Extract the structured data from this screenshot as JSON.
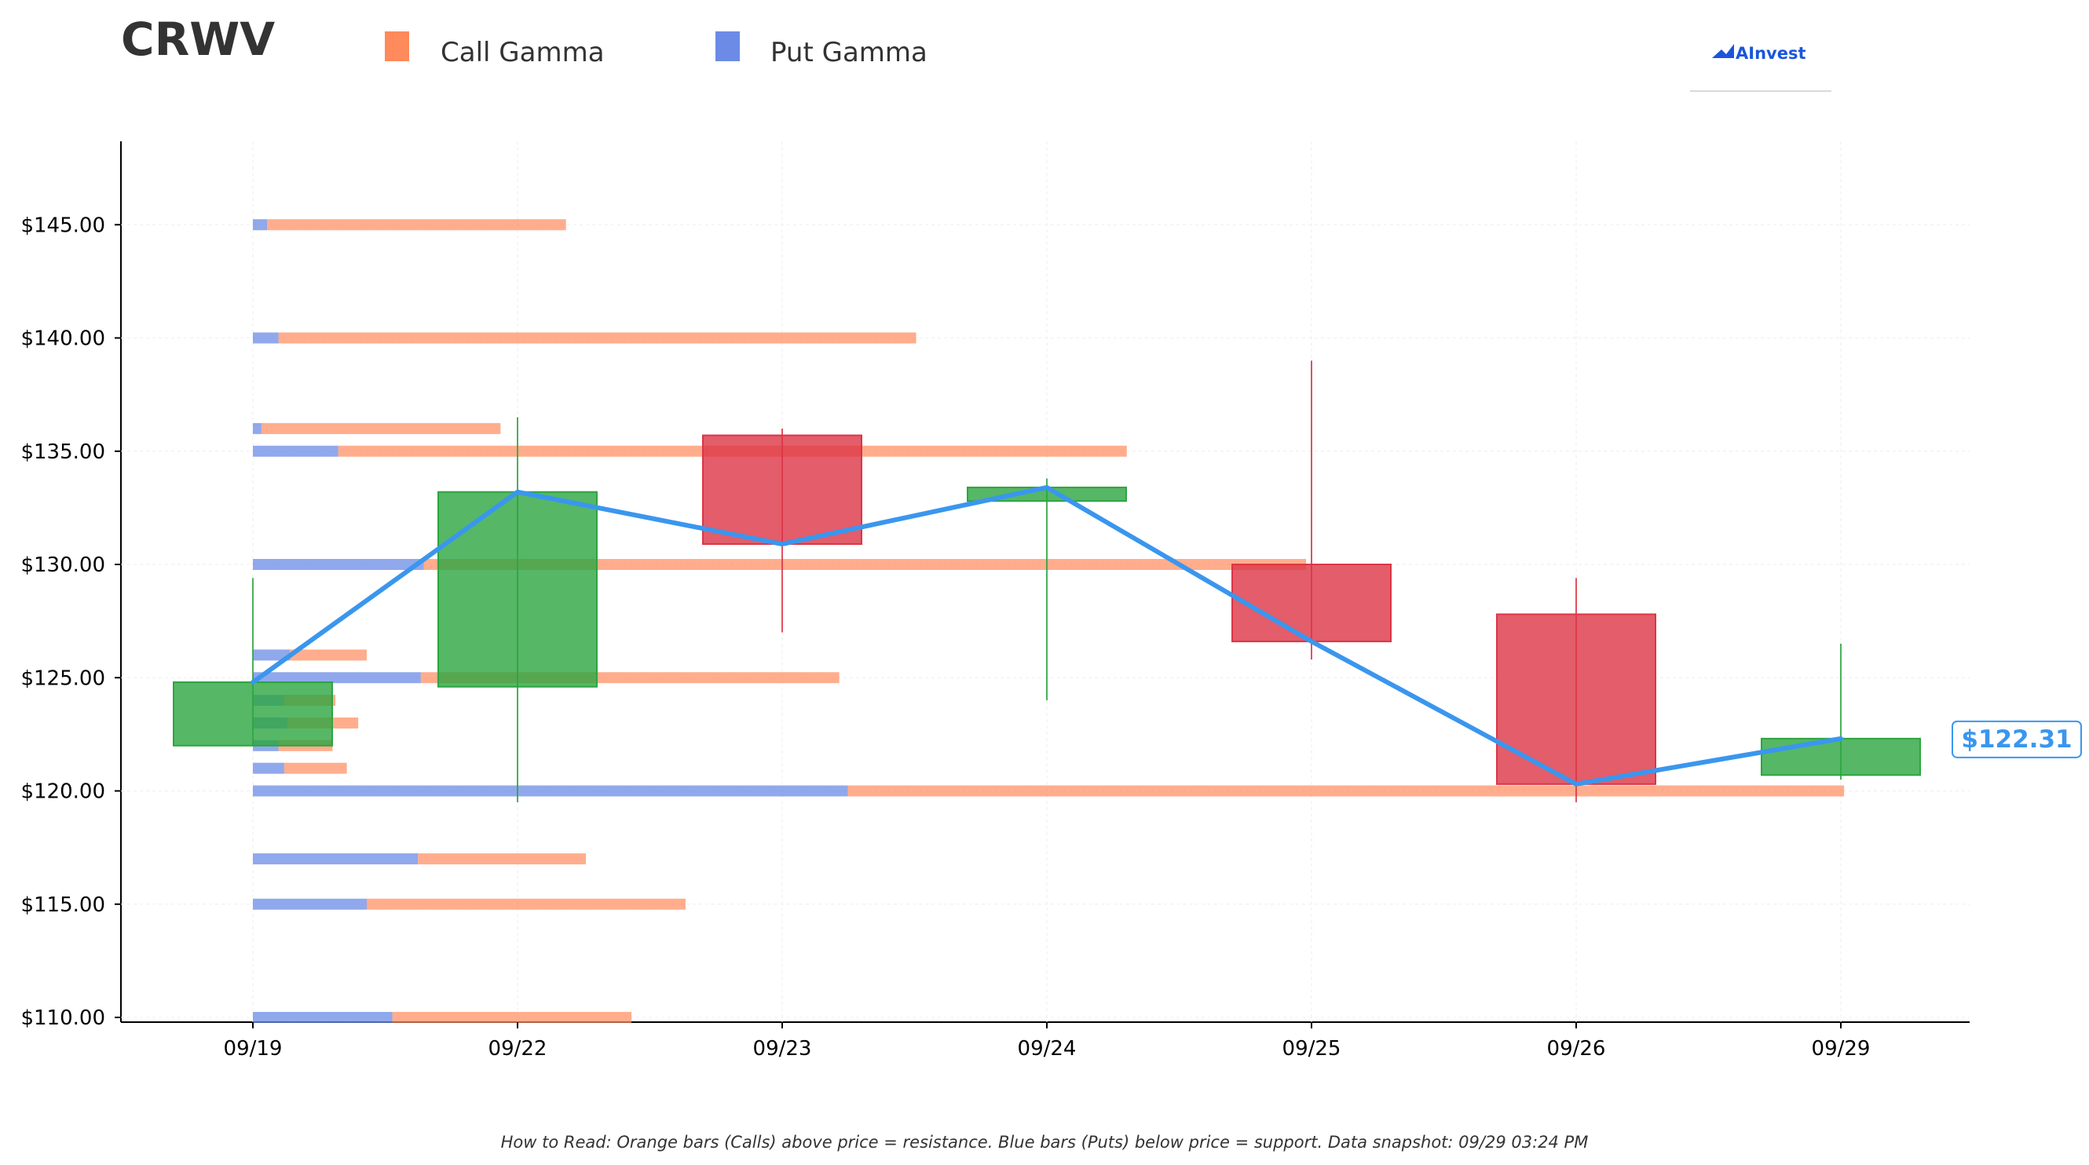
{
  "chart_data": {
    "type": "candlestick",
    "title": "CRWV",
    "brand": "AInvest",
    "footer": "How to Read: Orange bars (Calls) above price = resistance. Blue bars (Puts) below price = support. Data snapshot: 09/29 03:24 PM",
    "legend": [
      {
        "name": "Call Gamma",
        "color": "#ff8a5b"
      },
      {
        "name": "Put Gamma",
        "color": "#6b8be6"
      }
    ],
    "ylim": [
      109.8,
      149
    ],
    "yticks": [
      110,
      115,
      120,
      125,
      130,
      135,
      140,
      145
    ],
    "ytick_labels": [
      "$110.00",
      "$115.00",
      "$120.00",
      "$125.00",
      "$130.00",
      "$135.00",
      "$140.00",
      "$145.00"
    ],
    "categories": [
      "09/19",
      "09/22",
      "09/23",
      "09/24",
      "09/25",
      "09/26",
      "09/29"
    ],
    "candles": [
      {
        "date": "09/19",
        "open": 122.0,
        "high": 129.4,
        "low": 122.0,
        "close": 124.8
      },
      {
        "date": "09/22",
        "open": 124.6,
        "high": 136.5,
        "low": 119.5,
        "close": 133.2
      },
      {
        "date": "09/23",
        "open": 135.7,
        "high": 136.0,
        "low": 127.0,
        "close": 130.9
      },
      {
        "date": "09/24",
        "open": 132.8,
        "high": 133.8,
        "low": 124.0,
        "close": 133.4
      },
      {
        "date": "09/25",
        "open": 130.0,
        "high": 139.0,
        "low": 125.8,
        "close": 126.6
      },
      {
        "date": "09/26",
        "open": 127.8,
        "high": 129.4,
        "low": 119.5,
        "close": 120.3
      },
      {
        "date": "09/29",
        "open": 120.7,
        "high": 126.5,
        "low": 120.5,
        "close": 122.31
      }
    ],
    "close_line": [
      124.8,
      133.2,
      130.9,
      133.4,
      126.6,
      120.3,
      122.31
    ],
    "last_price": 122.31,
    "last_price_label": "$122.31",
    "gamma_x_max": 6.5,
    "gamma_levels": [
      {
        "strike": 145,
        "put": 0.05,
        "call": 1.05
      },
      {
        "strike": 140,
        "put": 0.09,
        "call": 2.24
      },
      {
        "strike": 136,
        "put": 0.03,
        "call": 0.84
      },
      {
        "strike": 135,
        "put": 0.3,
        "call": 2.77
      },
      {
        "strike": 130,
        "put": 0.6,
        "call": 3.1
      },
      {
        "strike": 126,
        "put": 0.13,
        "call": 0.27
      },
      {
        "strike": 125,
        "put": 0.59,
        "call": 1.47
      },
      {
        "strike": 124,
        "put": 0.11,
        "call": 0.18
      },
      {
        "strike": 123,
        "put": 0.12,
        "call": 0.25
      },
      {
        "strike": 122,
        "put": 0.09,
        "call": 0.19
      },
      {
        "strike": 121,
        "put": 0.11,
        "call": 0.22
      },
      {
        "strike": 120,
        "put": 2.09,
        "call": 3.5
      },
      {
        "strike": 117,
        "put": 0.58,
        "call": 0.59
      },
      {
        "strike": 115,
        "put": 0.4,
        "call": 1.12
      },
      {
        "strike": 110,
        "put": 0.49,
        "call": 0.84
      }
    ],
    "colors": {
      "up": "#2ca540",
      "down": "#dc3545",
      "line": "#3a96ee",
      "call": "#ff8a5b",
      "put": "#6b8be6"
    }
  }
}
